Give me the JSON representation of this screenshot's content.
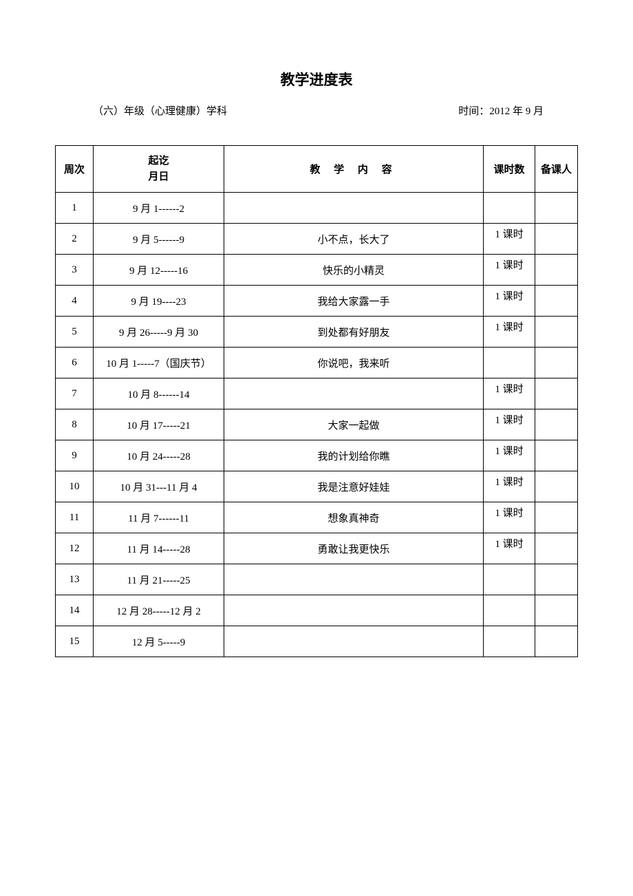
{
  "title": "教学进度表",
  "subtitle_left": "（六）年级（心理健康）学科",
  "subtitle_right": "时间：2012 年 9 月",
  "table": {
    "columns": {
      "week": "周次",
      "date_line1": "起讫",
      "date_line2": "月日",
      "content": "教 学 内 容",
      "hours": "课时数",
      "person": "备课人"
    },
    "rows": [
      {
        "week": "1",
        "date": "9 月 1------2",
        "content": "",
        "hours": "",
        "person": ""
      },
      {
        "week": "2",
        "date": "9 月 5------9",
        "content": "小不点，长大了",
        "hours": "1 课时",
        "person": ""
      },
      {
        "week": "3",
        "date": "9 月 12-----16",
        "content": "快乐的小精灵",
        "hours": "1 课时",
        "person": ""
      },
      {
        "week": "4",
        "date": "9 月 19----23",
        "content": "我给大家露一手",
        "hours": "1 课时",
        "person": ""
      },
      {
        "week": "5",
        "date": "9 月 26-----9 月 30",
        "content": "到处都有好朋友",
        "hours": "1 课时",
        "person": ""
      },
      {
        "week": "6",
        "date": "10 月 1-----7（国庆节）",
        "content": "你说吧，我来听",
        "hours": "",
        "person": ""
      },
      {
        "week": "7",
        "date": "10 月 8------14",
        "content": "",
        "hours": "1 课时",
        "person": ""
      },
      {
        "week": "8",
        "date": "10 月 17-----21",
        "content": "大家一起做",
        "hours": "1 课时",
        "person": ""
      },
      {
        "week": "9",
        "date": "10 月 24-----28",
        "content": "我的计划给你瞧",
        "hours": "1 课时",
        "person": ""
      },
      {
        "week": "10",
        "date": "10 月 31---11 月 4",
        "content": "我是注意好娃娃",
        "hours": "1 课时",
        "person": ""
      },
      {
        "week": "11",
        "date": "11 月 7------11",
        "content": "想象真神奇",
        "hours": "1 课时",
        "person": ""
      },
      {
        "week": "12",
        "date": "11 月 14-----28",
        "content": "勇敢让我更快乐",
        "hours": "1 课时",
        "person": ""
      },
      {
        "week": "13",
        "date": "11 月 21-----25",
        "content": "",
        "hours": "",
        "person": ""
      },
      {
        "week": "14",
        "date": "12 月 28-----12 月 2",
        "content": "",
        "hours": "",
        "person": ""
      },
      {
        "week": "15",
        "date": "12 月 5-----9",
        "content": "",
        "hours": "",
        "person": ""
      }
    ]
  },
  "styling": {
    "background_color": "#ffffff",
    "text_color": "#000000",
    "border_color": "#000000",
    "font_family": "SimSun",
    "title_fontsize": 21,
    "body_fontsize": 15,
    "column_widths": {
      "week": 55,
      "date": 190,
      "hours": 75,
      "person": 62
    },
    "header_row_height": 68,
    "data_row_height": 45
  }
}
